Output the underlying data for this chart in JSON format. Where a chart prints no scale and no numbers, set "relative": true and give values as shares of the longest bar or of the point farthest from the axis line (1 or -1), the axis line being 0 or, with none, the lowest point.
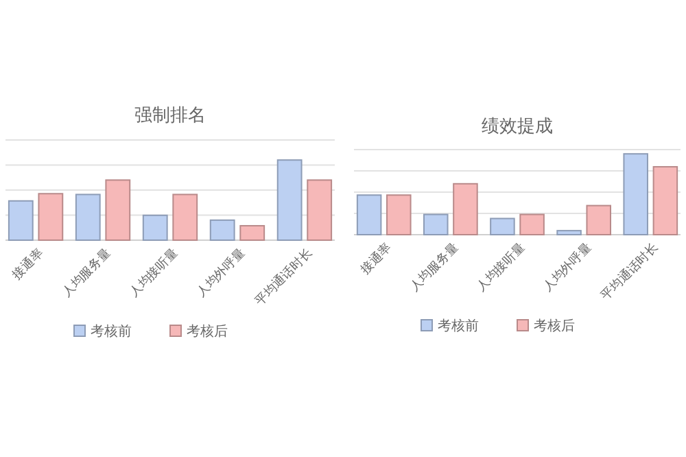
{
  "chart_data": [
    {
      "type": "bar",
      "title": "强制排名",
      "relative": true,
      "grid": "y",
      "legend": "bottom",
      "categories": [
        "接通率",
        "人均服务量",
        "人均接听量",
        "人均外呼量",
        "平均通话时长"
      ],
      "series": [
        {
          "name": "考核前",
          "color": "#bcd0f2",
          "values": [
            0.49,
            0.57,
            0.31,
            0.25,
            1
          ]
        },
        {
          "name": "考核后",
          "color": "#f6b8b8",
          "values": [
            0.58,
            0.75,
            0.57,
            0.18,
            0.75
          ]
        }
      ]
    },
    {
      "type": "bar",
      "title": "绩效提成",
      "relative": true,
      "grid": "y",
      "legend": "bottom",
      "categories": [
        "接通率",
        "人均服务量",
        "人均接听量",
        "人均外呼量",
        "平均通话时长"
      ],
      "series": [
        {
          "name": "考核前",
          "color": "#bcd0f2",
          "values": [
            0.49,
            0.25,
            0.2,
            0.05,
            1
          ]
        },
        {
          "name": "考核后",
          "color": "#f6b8b8",
          "values": [
            0.49,
            0.63,
            0.25,
            0.36,
            0.84
          ]
        }
      ]
    }
  ]
}
